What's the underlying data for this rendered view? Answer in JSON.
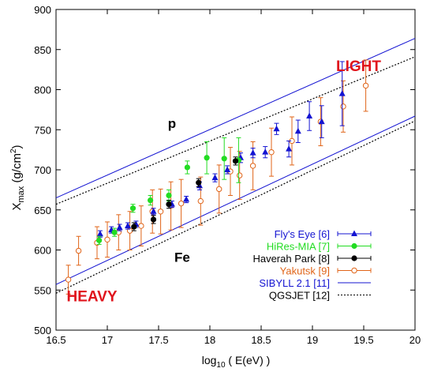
{
  "chart_data": {
    "type": "scatter",
    "title": "",
    "xlabel_main": "log",
    "xlabel_sub": "10",
    "xlabel_rest": " ( E(eV) )",
    "ylabel_main": "X",
    "ylabel_sub": "max",
    "ylabel_rest": "  (g/cm",
    "ylabel_sup": "2",
    "ylabel_close": ")",
    "xlim": [
      16.5,
      20
    ],
    "ylim": [
      500,
      900
    ],
    "x_ticks": [
      "16.5",
      "17",
      "17.5",
      "18",
      "18.5",
      "19",
      "19.5",
      "20"
    ],
    "y_ticks": [
      "500",
      "550",
      "600",
      "650",
      "700",
      "750",
      "800",
      "850",
      "900"
    ],
    "grid": false,
    "legend_position": "bottom-right",
    "annotations": [
      {
        "text": "LIGHT",
        "x": 19.45,
        "y": 823,
        "color": "#e0141c"
      },
      {
        "text": "p",
        "x": 17.63,
        "y": 752,
        "color": "#000000"
      },
      {
        "text": "Fe",
        "x": 17.73,
        "y": 585,
        "color": "#000000"
      },
      {
        "text": "HEAVY",
        "x": 16.85,
        "y": 536,
        "color": "#e0141c"
      }
    ],
    "series": [
      {
        "name": "Fly's Eye [6]",
        "color": "#1414d2",
        "marker": "triangle",
        "points": [
          {
            "x": 16.93,
            "y": 620,
            "err": 4
          },
          {
            "x": 17.04,
            "y": 625,
            "err": 4
          },
          {
            "x": 17.12,
            "y": 628,
            "err": 4
          },
          {
            "x": 17.2,
            "y": 630,
            "err": 4
          },
          {
            "x": 17.28,
            "y": 632,
            "err": 4
          },
          {
            "x": 17.45,
            "y": 648,
            "err": 4
          },
          {
            "x": 17.63,
            "y": 657,
            "err": 4
          },
          {
            "x": 17.77,
            "y": 663,
            "err": 4
          },
          {
            "x": 17.9,
            "y": 680,
            "err": 5
          },
          {
            "x": 18.05,
            "y": 690,
            "err": 5
          },
          {
            "x": 18.17,
            "y": 700,
            "err": 5
          },
          {
            "x": 18.3,
            "y": 715,
            "err": 6
          },
          {
            "x": 18.42,
            "y": 721,
            "err": 6
          },
          {
            "x": 18.54,
            "y": 722,
            "err": 7
          },
          {
            "x": 18.65,
            "y": 751,
            "err": 7
          },
          {
            "x": 18.77,
            "y": 726,
            "err": 10
          },
          {
            "x": 18.86,
            "y": 748,
            "err": 14
          },
          {
            "x": 18.97,
            "y": 767,
            "err": 18
          },
          {
            "x": 19.09,
            "y": 760,
            "err": 20
          },
          {
            "x": 19.29,
            "y": 795,
            "err": 40
          }
        ]
      },
      {
        "name": "HiRes-MIA [7]",
        "color": "#22dc22",
        "marker": "circle",
        "points": [
          {
            "x": 16.92,
            "y": 612,
            "err": 5
          },
          {
            "x": 17.07,
            "y": 622,
            "err": 5
          },
          {
            "x": 17.25,
            "y": 652,
            "err": 5
          },
          {
            "x": 17.42,
            "y": 662,
            "err": 6
          },
          {
            "x": 17.6,
            "y": 668,
            "err": 7
          },
          {
            "x": 17.78,
            "y": 703,
            "err": 8
          },
          {
            "x": 17.97,
            "y": 715,
            "err": 20
          },
          {
            "x": 18.14,
            "y": 714,
            "err": 26
          },
          {
            "x": 18.28,
            "y": 712,
            "err": 28
          }
        ]
      },
      {
        "name": "Haverah Park [8]",
        "color": "#000000",
        "marker": "circle",
        "points": [
          {
            "x": 17.26,
            "y": 629,
            "err": 5
          },
          {
            "x": 17.45,
            "y": 638,
            "err": 5
          },
          {
            "x": 17.6,
            "y": 657,
            "err": 5
          },
          {
            "x": 17.89,
            "y": 684,
            "err": 5
          },
          {
            "x": 18.25,
            "y": 711,
            "err": 5
          }
        ]
      },
      {
        "name": "Yakutsk [9]",
        "color": "#e06418",
        "marker": "open-circle",
        "points": [
          {
            "x": 16.62,
            "y": 563,
            "err": 18
          },
          {
            "x": 16.72,
            "y": 599,
            "err": 18
          },
          {
            "x": 16.9,
            "y": 609,
            "err": 20
          },
          {
            "x": 17.0,
            "y": 613,
            "err": 22
          },
          {
            "x": 17.11,
            "y": 622,
            "err": 22
          },
          {
            "x": 17.22,
            "y": 624,
            "err": 24
          },
          {
            "x": 17.33,
            "y": 630,
            "err": 25
          },
          {
            "x": 17.44,
            "y": 648,
            "err": 27
          },
          {
            "x": 17.52,
            "y": 648,
            "err": 28
          },
          {
            "x": 17.62,
            "y": 655,
            "err": 30
          },
          {
            "x": 17.72,
            "y": 658,
            "err": 30
          },
          {
            "x": 17.91,
            "y": 661,
            "err": 30
          },
          {
            "x": 18.09,
            "y": 676,
            "err": 30
          },
          {
            "x": 18.2,
            "y": 698,
            "err": 30
          },
          {
            "x": 18.29,
            "y": 693,
            "err": 30
          },
          {
            "x": 18.42,
            "y": 705,
            "err": 30
          },
          {
            "x": 18.6,
            "y": 722,
            "err": 30
          },
          {
            "x": 18.8,
            "y": 736,
            "err": 30
          },
          {
            "x": 19.08,
            "y": 760,
            "err": 30
          },
          {
            "x": 19.3,
            "y": 779,
            "err": 32
          },
          {
            "x": 19.52,
            "y": 805,
            "err": 32
          }
        ]
      }
    ],
    "lines": [
      {
        "name": "SIBYLL 2.1 [11]",
        "color": "#1414d2",
        "style": "solid",
        "segments": [
          [
            [
              16.5,
              665
            ],
            [
              20,
              864
            ]
          ],
          [
            [
              16.5,
              557
            ],
            [
              20,
              767
            ]
          ]
        ]
      },
      {
        "name": "QGSJET [12]",
        "color": "#000000",
        "style": "dotted",
        "segments": [
          [
            [
              16.5,
              657
            ],
            [
              20,
              841
            ]
          ],
          [
            [
              16.5,
              546
            ],
            [
              20,
              761
            ]
          ]
        ]
      }
    ]
  }
}
